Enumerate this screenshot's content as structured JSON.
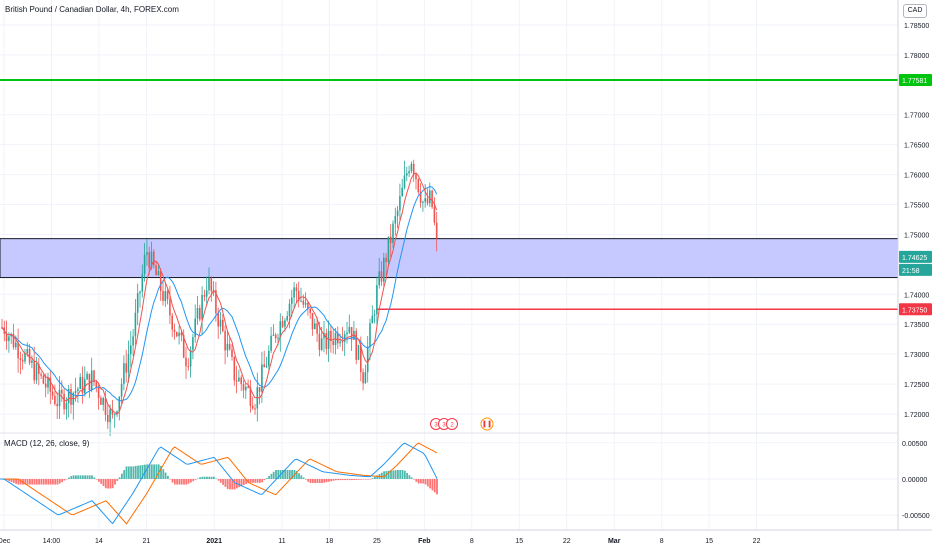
{
  "header": {
    "symbol_title": "British Pound / Canadian Dollar, 4h, FOREX.com",
    "currency_button": "CAD"
  },
  "macd": {
    "title": "MACD (12, 26, close, 9)",
    "ticks": [
      "0.00500",
      "0.00000",
      "-0.00500"
    ]
  },
  "price_axis": {
    "ticks": [
      "1.78500",
      "1.78000",
      "1.77000",
      "1.76500",
      "1.76000",
      "1.75500",
      "1.75000",
      "1.74000",
      "1.73500",
      "1.73000",
      "1.72500",
      "1.72000"
    ],
    "labels": [
      {
        "text": "1.77581",
        "bg": "#00c40f",
        "fg": "#ffffff"
      },
      {
        "text": "1.74625",
        "bg": "#26a69a",
        "fg": "#ffffff"
      },
      {
        "text": "21:58",
        "bg": "#26a69a",
        "fg": "#ffffff"
      },
      {
        "text": "1.73750",
        "bg": "#f23645",
        "fg": "#ffffff"
      }
    ]
  },
  "time_axis": {
    "ticks": [
      "Dec",
      "14:00",
      "14",
      "21",
      "2021",
      "11",
      "18",
      "25",
      "Feb",
      "8",
      "15",
      "22",
      "Mar",
      "8",
      "15",
      "22"
    ]
  },
  "event_badges": {
    "earnings": [
      "3",
      "3",
      "2"
    ],
    "flag": "CA"
  },
  "colors": {
    "up": "#26a69a",
    "down": "#ef5350",
    "ma_fast": "#ef5350",
    "ma_slow": "#2196f3",
    "macd_line": "#2196f3",
    "signal_line": "#ff6d00",
    "hist_up": "#26a69a",
    "hist_down": "#ff5252",
    "zone_fill": "#c5c9ff",
    "resistance": "#00c40f",
    "support": "#f23645"
  },
  "chart_data": {
    "type": "candlestick",
    "instrument": "British Pound / Canadian Dollar",
    "timeframe": "4h",
    "source": "FOREX.com",
    "y_range": [
      1.7185,
      1.7875
    ],
    "last_price": 1.74625,
    "levels": {
      "resistance": 1.77581,
      "support": 1.7375
    },
    "zone": {
      "top": 1.7493,
      "bottom": 1.7428
    },
    "path_points": [
      [
        "Dec",
        1.7345
      ],
      [
        "Dec 5",
        1.728
      ],
      [
        "Dec 9",
        1.722
      ],
      [
        "Dec 14",
        1.726
      ],
      [
        "Dec 17",
        1.719
      ],
      [
        "Dec 20",
        1.733
      ],
      [
        "Dec 22",
        1.7475
      ],
      [
        "Dec 28",
        1.729
      ],
      [
        "Dec 31",
        1.7425
      ],
      [
        "Jan 4",
        1.7265
      ],
      [
        "Jan 7",
        1.7225
      ],
      [
        "Jan 10",
        1.7335
      ],
      [
        "Jan 13",
        1.741
      ],
      [
        "Jan 17",
        1.7315
      ],
      [
        "Jan 21",
        1.735
      ],
      [
        "Jan 23",
        1.7265
      ],
      [
        "Jan 25",
        1.7405
      ],
      [
        "Jan 28",
        1.7535
      ],
      [
        "Jan 30",
        1.7632
      ],
      [
        "Feb 1",
        1.7545
      ],
      [
        "Feb 2",
        1.756
      ],
      [
        "Feb 3",
        1.7465
      ]
    ],
    "macd_range": [
      -0.0065,
      0.0058
    ],
    "macd_points": [
      [
        "Dec",
        0.0
      ],
      [
        "Dec 5",
        -0.0025
      ],
      [
        "Dec 9",
        -0.005
      ],
      [
        "Dec 14",
        -0.003
      ],
      [
        "Dec 17",
        -0.0062
      ],
      [
        "Dec 20",
        -0.002
      ],
      [
        "Dec 24",
        0.0045
      ],
      [
        "Dec 28",
        0.002
      ],
      [
        "Jan 1",
        0.003
      ],
      [
        "Jan 4",
        -0.0005
      ],
      [
        "Jan 8",
        -0.0022
      ],
      [
        "Jan 13",
        0.0028
      ],
      [
        "Jan 17",
        0.001
      ],
      [
        "Jan 21",
        0.0005
      ],
      [
        "Jan 24",
        0.0003
      ],
      [
        "Jan 26",
        0.002
      ],
      [
        "Jan 29",
        0.005
      ],
      [
        "Feb 1",
        0.0035
      ],
      [
        "Feb 3",
        -0.0002
      ]
    ]
  }
}
